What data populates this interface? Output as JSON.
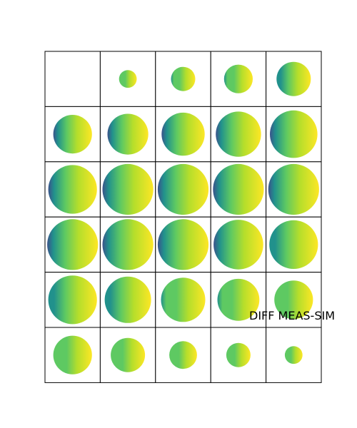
{
  "chart_data": {
    "type": "heatmap",
    "layout": {
      "rows": 6,
      "cols": 5
    },
    "colormap": "viridis",
    "annotation": "DIFF MEAS-SIM",
    "panels": [
      {
        "row": 0,
        "col": 0,
        "disk_radius": 0,
        "gradient_strength": 0.0
      },
      {
        "row": 0,
        "col": 1,
        "disk_radius": 0.16,
        "gradient_strength": 0.35
      },
      {
        "row": 0,
        "col": 2,
        "disk_radius": 0.22,
        "gradient_strength": 0.45
      },
      {
        "row": 0,
        "col": 3,
        "disk_radius": 0.26,
        "gradient_strength": 0.5
      },
      {
        "row": 0,
        "col": 4,
        "disk_radius": 0.31,
        "gradient_strength": 0.6
      },
      {
        "row": 1,
        "col": 0,
        "disk_radius": 0.35,
        "gradient_strength": 0.8
      },
      {
        "row": 1,
        "col": 1,
        "disk_radius": 0.37,
        "gradient_strength": 0.85
      },
      {
        "row": 1,
        "col": 2,
        "disk_radius": 0.39,
        "gradient_strength": 0.95
      },
      {
        "row": 1,
        "col": 3,
        "disk_radius": 0.41,
        "gradient_strength": 1.0
      },
      {
        "row": 1,
        "col": 4,
        "disk_radius": 0.43,
        "gradient_strength": 1.0
      },
      {
        "row": 2,
        "col": 0,
        "disk_radius": 0.44,
        "gradient_strength": 1.0
      },
      {
        "row": 2,
        "col": 1,
        "disk_radius": 0.46,
        "gradient_strength": 1.0
      },
      {
        "row": 2,
        "col": 2,
        "disk_radius": 0.46,
        "gradient_strength": 1.0
      },
      {
        "row": 2,
        "col": 3,
        "disk_radius": 0.46,
        "gradient_strength": 0.95
      },
      {
        "row": 2,
        "col": 4,
        "disk_radius": 0.46,
        "gradient_strength": 0.95
      },
      {
        "row": 3,
        "col": 0,
        "disk_radius": 0.46,
        "gradient_strength": 0.9
      },
      {
        "row": 3,
        "col": 1,
        "disk_radius": 0.46,
        "gradient_strength": 0.9
      },
      {
        "row": 3,
        "col": 2,
        "disk_radius": 0.46,
        "gradient_strength": 0.85
      },
      {
        "row": 3,
        "col": 3,
        "disk_radius": 0.45,
        "gradient_strength": 0.8
      },
      {
        "row": 3,
        "col": 4,
        "disk_radius": 0.44,
        "gradient_strength": 0.7
      },
      {
        "row": 4,
        "col": 0,
        "disk_radius": 0.44,
        "gradient_strength": 0.6
      },
      {
        "row": 4,
        "col": 1,
        "disk_radius": 0.42,
        "gradient_strength": 0.55
      },
      {
        "row": 4,
        "col": 2,
        "disk_radius": 0.4,
        "gradient_strength": 0.5
      },
      {
        "row": 4,
        "col": 3,
        "disk_radius": 0.38,
        "gradient_strength": 0.45
      },
      {
        "row": 4,
        "col": 4,
        "disk_radius": 0.35,
        "gradient_strength": 0.4
      },
      {
        "row": 5,
        "col": 0,
        "disk_radius": 0.35,
        "gradient_strength": 0.35
      },
      {
        "row": 5,
        "col": 1,
        "disk_radius": 0.31,
        "gradient_strength": 0.3
      },
      {
        "row": 5,
        "col": 2,
        "disk_radius": 0.25,
        "gradient_strength": 0.2
      },
      {
        "row": 5,
        "col": 3,
        "disk_radius": 0.22,
        "gradient_strength": 0.15
      },
      {
        "row": 5,
        "col": 4,
        "disk_radius": 0.16,
        "gradient_strength": 0.1
      }
    ]
  }
}
